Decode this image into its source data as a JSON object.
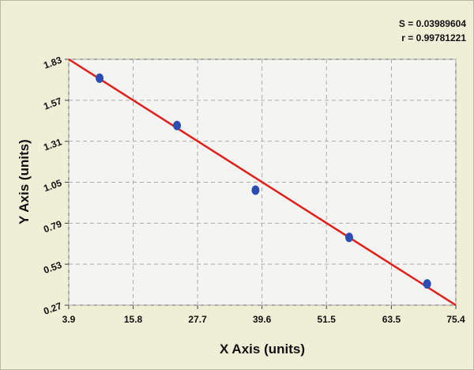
{
  "chart_data": {
    "type": "scatter",
    "annotations": [
      "S = 0.03989604",
      "r = 0.99781221"
    ],
    "xlabel": "X Axis (units)",
    "ylabel": "Y Axis (units)",
    "x": [
      9.6,
      23.9,
      38.4,
      55.7,
      70.1
    ],
    "values": [
      1.71,
      1.41,
      1.0,
      0.7,
      0.405
    ],
    "color": "#2b4db3",
    "fit": {
      "x": [
        3.9,
        75.4
      ],
      "values": [
        1.83,
        0.27
      ],
      "color": "#e0211b"
    },
    "xlim": [
      3.9,
      75.4
    ],
    "xticks": [
      3.9,
      15.8,
      27.7,
      39.6,
      51.5,
      63.5,
      75.4
    ],
    "ylim": [
      0.27,
      1.83
    ],
    "yticks": [
      0.27,
      0.53,
      0.79,
      1.05,
      1.31,
      1.57,
      1.83
    ],
    "grid": true
  }
}
